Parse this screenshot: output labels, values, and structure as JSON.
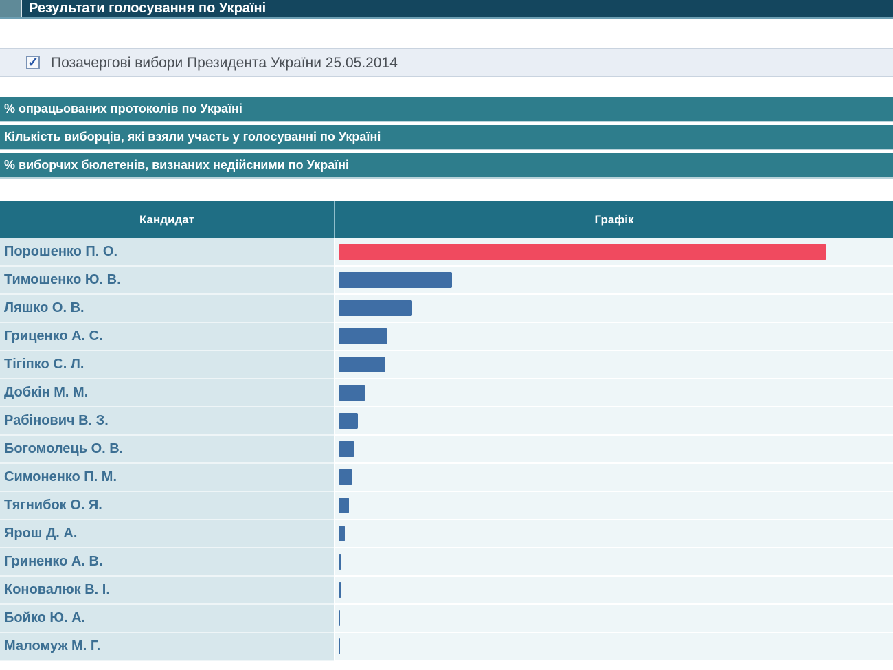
{
  "page": {
    "title": "Результати голосування по Україні",
    "election": {
      "label": "Позачергові вибори Президента України 25.05.2014",
      "checked": true
    }
  },
  "sections": [
    {
      "label": "% опрацьованих протоколів по Україні"
    },
    {
      "label": "Кількість виборців, які взяли участь у голосуванні по Україні"
    },
    {
      "label": "% виборчих бюлетенів, визнаних недійсними по Україні"
    }
  ],
  "table": {
    "headers": {
      "candidate": "Кандидат",
      "graph": "Графік"
    },
    "rows": [
      {
        "name": "Порошенко П. О.",
        "bar_fraction": 1.0,
        "color": "#f04a5f"
      },
      {
        "name": "Тимошенко Ю. В.",
        "bar_fraction": 0.232,
        "color": "#3f6ea5"
      },
      {
        "name": "Ляшко О. В.",
        "bar_fraction": 0.15,
        "color": "#3f6ea5"
      },
      {
        "name": "Гриценко А. С.",
        "bar_fraction": 0.1,
        "color": "#3f6ea5"
      },
      {
        "name": "Тігіпко С. Л.",
        "bar_fraction": 0.096,
        "color": "#3f6ea5"
      },
      {
        "name": "Добкін М. М.",
        "bar_fraction": 0.055,
        "color": "#3f6ea5"
      },
      {
        "name": "Рабінович В. З.",
        "bar_fraction": 0.04,
        "color": "#3f6ea5"
      },
      {
        "name": "Богомолець О. В.",
        "bar_fraction": 0.033,
        "color": "#3f6ea5"
      },
      {
        "name": "Симоненко П. М.",
        "bar_fraction": 0.028,
        "color": "#3f6ea5"
      },
      {
        "name": "Тягнибок О. Я.",
        "bar_fraction": 0.021,
        "color": "#3f6ea5"
      },
      {
        "name": "Ярош Д. А.",
        "bar_fraction": 0.012,
        "color": "#3f6ea5"
      },
      {
        "name": "Гриненко А. В.",
        "bar_fraction": 0.006,
        "color": "#3f6ea5"
      },
      {
        "name": "Коновалюк В. І.",
        "bar_fraction": 0.006,
        "color": "#3f6ea5"
      },
      {
        "name": "Бойко Ю. А.",
        "bar_fraction": 0.003,
        "color": "#3f6ea5"
      },
      {
        "name": "Маломуж М. Г.",
        "bar_fraction": 0.003,
        "color": "#3f6ea5"
      }
    ]
  }
}
